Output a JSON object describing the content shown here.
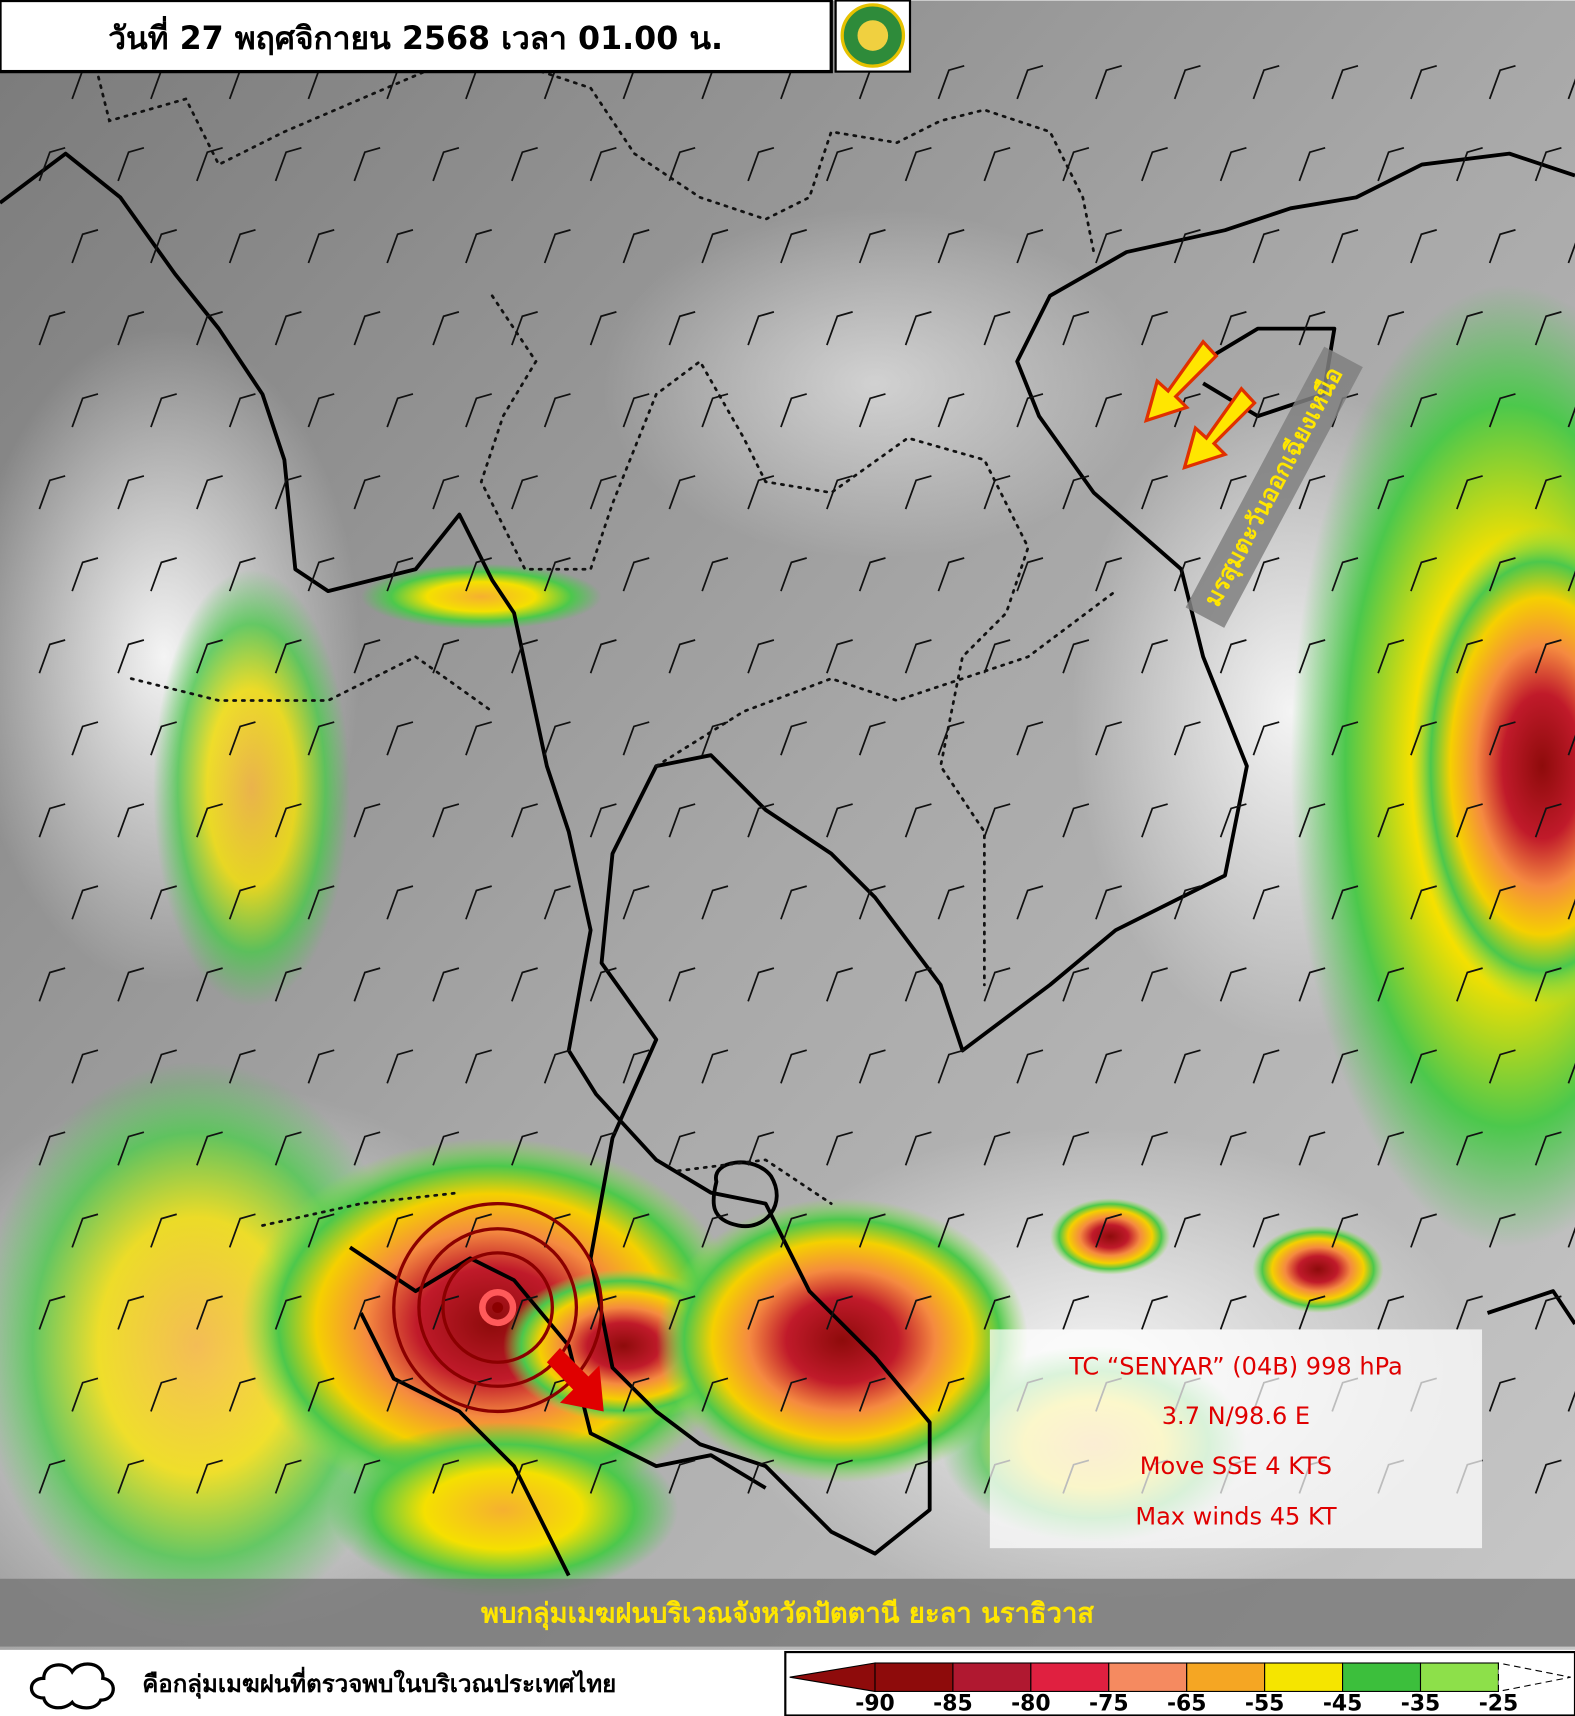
{
  "header": {
    "title": "วันที่ 27 พฤศจิกายน 2568 เวลา 01.00 น."
  },
  "annotations": {
    "monsoon": "มรสุมตะวันออกเฉียงเหนือ",
    "rain_area": "พบกลุ่มเมฆฝนบริเวณจังหวัดปัตตานี ยะลา นราธิวาส"
  },
  "storm": {
    "lines": [
      "TC “SENYAR” (04B) 998 hPa",
      "3.7 N/98.6 E",
      "Move SSE 4 KTS",
      "Max winds 45 KT"
    ]
  },
  "legend": {
    "cloud_label": "คือกลุ่มเมฆฝนที่ตรวจพบในบริเวณประเทศไทย",
    "scale_ticks": [
      -90,
      -85,
      -80,
      -75,
      -65,
      -55,
      -45,
      -35,
      -25
    ],
    "scale_colors": [
      "#8e0b0b",
      "#b01830",
      "#e02040",
      "#f58a60",
      "#f5a623",
      "#f5e500",
      "#3cbf3c",
      "#8de04a",
      "#2a8ff0"
    ]
  }
}
